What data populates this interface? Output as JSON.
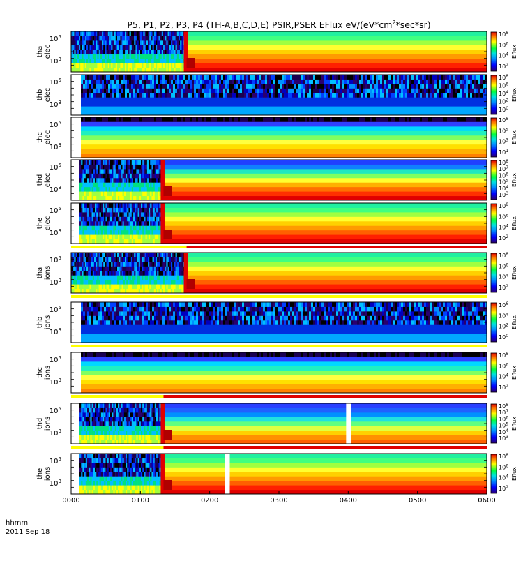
{
  "chart_data": {
    "type": "heatmap",
    "title": "P5, P1, P2, P3, P4 (TH-A,B,C,D,E) PSIR,PSER EFlux eV/(eV*cm2*sec*sr)",
    "x_label_left": "hhmm",
    "date_label": "2011 Sep 18",
    "xlim": [
      "0000",
      "0600"
    ],
    "x_ticks": [
      "0000",
      "0100",
      "0200",
      "0300",
      "0400",
      "0500",
      "0600"
    ],
    "colorbar_label": "Eflux",
    "panels": [
      {
        "label": "tha elec",
        "y_ticks": [
          "10^5",
          "10^3"
        ],
        "cb_ticks": [
          "10^8",
          "10^6",
          "10^4",
          "10^2"
        ],
        "transition_hhmm": "0140",
        "status_bar": null
      },
      {
        "label": "thb elec",
        "y_ticks": [
          "10^5",
          "10^3"
        ],
        "cb_ticks": [
          "10^8",
          "10^6",
          "10^4",
          "10^2",
          "10^0"
        ],
        "transition_hhmm": "0010",
        "status_bar": null
      },
      {
        "label": "thc elec",
        "y_ticks": [
          "10^5",
          "10^3"
        ],
        "cb_ticks": [
          "10^8",
          "10^5",
          "10^3",
          "10^1"
        ],
        "transition_hhmm": "0010",
        "status_bar": null
      },
      {
        "label": "thd elec",
        "y_ticks": [
          "10^5",
          "10^3"
        ],
        "cb_ticks": [
          "10^8",
          "10^7",
          "10^6",
          "10^5",
          "10^4",
          "10^3"
        ],
        "transition_hhmm": "0120",
        "status_bar": null
      },
      {
        "label": "the elec",
        "y_ticks": [
          "10^5",
          "10^3"
        ],
        "cb_ticks": [
          "10^8",
          "10^6",
          "10^4",
          "10^2"
        ],
        "transition_hhmm": "0120",
        "status_bar": "yellow-to-red at 0140"
      },
      {
        "label": "tha ions",
        "y_ticks": [
          "10^5",
          "10^3"
        ],
        "cb_ticks": [
          "10^8",
          "10^6",
          "10^4",
          "10^2"
        ],
        "transition_hhmm": "0140",
        "status_bar": "yellow"
      },
      {
        "label": "thb ions",
        "y_ticks": [
          "10^5",
          "10^3"
        ],
        "cb_ticks": [
          "10^6",
          "10^4",
          "10^2",
          "10^0"
        ],
        "transition_hhmm": "0010",
        "status_bar": "yellow"
      },
      {
        "label": "thc ions",
        "y_ticks": [
          "10^5",
          "10^3"
        ],
        "cb_ticks": [
          "10^8",
          "10^6",
          "10^4",
          "10^2"
        ],
        "transition_hhmm": "0010",
        "status_bar": "yellow-to-red at 0120"
      },
      {
        "label": "thd ions",
        "y_ticks": [
          "10^5",
          "10^3"
        ],
        "cb_ticks": [
          "10^8",
          "10^7",
          "10^6",
          "10^5",
          "10^4",
          "10^3"
        ],
        "transition_hhmm": "0120",
        "status_bar": "yellow-to-red at 0120",
        "gap_hhmm": "0400"
      },
      {
        "label": "the ions",
        "y_ticks": [
          "10^5",
          "10^3"
        ],
        "cb_ticks": [
          "10^8",
          "10^6",
          "10^4",
          "10^2"
        ],
        "transition_hhmm": "0120",
        "status_bar": null,
        "gap_hhmm": "0215"
      }
    ]
  }
}
